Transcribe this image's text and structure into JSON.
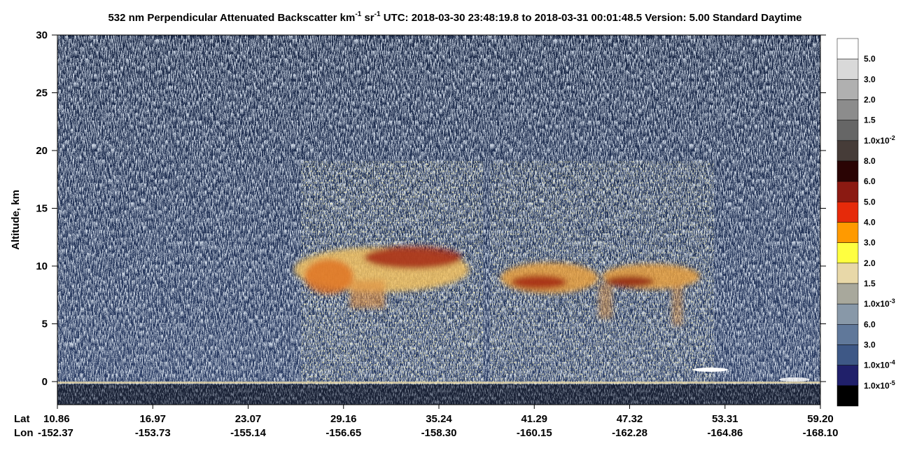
{
  "chart_data": {
    "type": "heatmap",
    "title": [
      "532 nm Perpendicular Attenuated Backscatter km",
      "-1",
      " sr",
      "-1",
      "  UTC: 2018-03-30 23:48:19.8 to 2018-03-31 00:01:48.5  Version: 5.00 Standard Daytime"
    ],
    "ylabel": "Altitude, km",
    "ylim": [
      -2,
      30
    ],
    "yticks": [
      0,
      5,
      10,
      15,
      20,
      25,
      30
    ],
    "x_row_labels": [
      "Lat",
      "Lon"
    ],
    "lat": [
      "10.86",
      "16.97",
      "23.07",
      "29.16",
      "35.24",
      "41.29",
      "47.32",
      "53.31",
      "59.20"
    ],
    "lon": [
      "-152.37",
      "-153.73",
      "-155.14",
      "-156.65",
      "-158.30",
      "-160.15",
      "-162.28",
      "-164.86",
      "-168.10"
    ],
    "colorbar": {
      "colors": [
        "#ffffff",
        "#d9d9d9",
        "#b0b0b0",
        "#8c8c8c",
        "#666666",
        "#463c38",
        "#2a0404",
        "#8b1a12",
        "#e62a0a",
        "#ff9a00",
        "#ffff40",
        "#e8d8a8",
        "#a8a89c",
        "#8898a8",
        "#60789a",
        "#3e5886",
        "#20206a",
        "#000000"
      ],
      "labels": [
        "5.0",
        "3.0",
        "2.0",
        "1.5",
        "1.0x10",
        "8.0",
        "6.0",
        "5.0",
        "4.0",
        "3.0",
        "2.0",
        "1.5",
        "1.0x10",
        "6.0",
        "3.0",
        "1.0x10",
        "1.0x10"
      ],
      "exponents": [
        null,
        null,
        null,
        null,
        "-2",
        null,
        null,
        null,
        null,
        null,
        null,
        null,
        "-3",
        null,
        null,
        "-4",
        "-5"
      ]
    }
  }
}
